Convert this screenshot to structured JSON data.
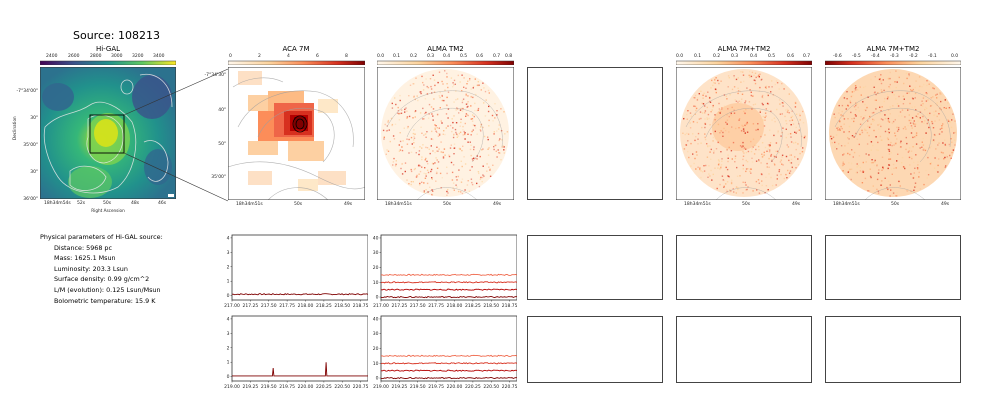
{
  "figure": {
    "title": "Source: 108213",
    "panel_titles": {
      "higal": "Hi-GAL",
      "aca": "ACA 7M",
      "alma_tm2": "ALMA TM2",
      "alma_7m_tm2_a": "ALMA 7M+TM2",
      "alma_7m_tm2_b": "ALMA 7M+TM2"
    },
    "colorbars": {
      "higal": [
        "2400",
        "2600",
        "2800",
        "3000",
        "3200",
        "3400"
      ],
      "aca": [
        "0",
        "2",
        "4",
        "6",
        "8"
      ],
      "alma_tm2": [
        "0.0",
        "0.1",
        "0.2",
        "0.3",
        "0.4",
        "0.5",
        "0.6",
        "0.7",
        "0.8"
      ],
      "alma_7m_tm2_a": [
        "0.0",
        "0.1",
        "0.2",
        "0.3",
        "0.4",
        "0.5",
        "0.6",
        "0.7"
      ],
      "alma_7m_tm2_b": [
        "-0.6",
        "-0.5",
        "-0.4",
        "-0.3",
        "-0.2",
        "-0.1",
        "0.0"
      ]
    },
    "higal_axes": {
      "xlabel": "Right Ascension",
      "ylabel": "Declination",
      "xticks": [
        "18h34m54s",
        "52s",
        "50s",
        "48s",
        "46s"
      ],
      "yticks": [
        "-7°34'00\"",
        "30\"",
        "35'00\"",
        "30\"",
        "36'00\""
      ]
    },
    "aca_axes": {
      "xticks": [
        "18h34m51s",
        "50s",
        "49s"
      ],
      "yticks": [
        "-7°34'30\"",
        "40\"",
        "50\"",
        "35'00\""
      ]
    },
    "alma_axes": {
      "xticks": [
        "18h34m51s",
        "50s",
        "49s"
      ]
    },
    "physical_parameters": {
      "header": "Physical parameters of Hi-GAL source:",
      "distance": "Distance: 5968 pc",
      "mass": "Mass: 1625.1 Msun",
      "luminosity": "Luminosity: 203.3 Lsun",
      "surface_density": "Surface density: 0.99 g/cm^2",
      "lm": "L/M (evolution): 0.125 Lsun/Msun",
      "tbol": "Bolometric temperature: 15.9 K"
    }
  },
  "chart_data": [
    {
      "type": "line",
      "panel": "spectrum-aca-row1",
      "x_ticks": [
        "217.00",
        "217.25",
        "217.50",
        "217.75",
        "218.00",
        "218.25",
        "218.50",
        "218.75"
      ],
      "y_ticks": [
        "0",
        "1",
        "2",
        "3",
        "4"
      ],
      "xlim": [
        217.0,
        218.85
      ],
      "ylim": [
        -0.3,
        4.2
      ],
      "series": [
        {
          "color": "#7f0000",
          "x": [
            217.0,
            218.85
          ],
          "y": [
            0.1,
            0.1
          ]
        }
      ]
    },
    {
      "type": "line",
      "panel": "spectrum-tm2-row1",
      "x_ticks": [
        "217.00",
        "217.25",
        "217.50",
        "217.75",
        "218.00",
        "218.25",
        "218.50",
        "218.75"
      ],
      "y_ticks": [
        "0",
        "10",
        "20",
        "30",
        "40"
      ],
      "xlim": [
        217.0,
        218.85
      ],
      "ylim": [
        -2,
        42
      ],
      "series": [
        {
          "color": "#ef6548",
          "x": [
            217.0,
            218.85
          ],
          "y": [
            15,
            15
          ]
        },
        {
          "color": "#d7301f",
          "x": [
            217.0,
            218.85
          ],
          "y": [
            10,
            10
          ]
        },
        {
          "color": "#b30000",
          "x": [
            217.0,
            218.85
          ],
          "y": [
            5,
            5
          ]
        },
        {
          "color": "#7f0000",
          "x": [
            217.0,
            218.85
          ],
          "y": [
            0,
            0
          ]
        }
      ]
    },
    {
      "type": "line",
      "panel": "spectrum-aca-row2",
      "x_ticks": [
        "219.00",
        "219.25",
        "219.50",
        "219.75",
        "220.00",
        "220.25",
        "220.50",
        "220.75"
      ],
      "y_ticks": [
        "0",
        "1",
        "2",
        "3",
        "4"
      ],
      "xlim": [
        219.0,
        220.85
      ],
      "ylim": [
        -0.3,
        4.2
      ],
      "series": [
        {
          "color": "#7f0000",
          "x": [
            219.0,
            219.55,
            219.56,
            219.57,
            220.27,
            220.28,
            220.29,
            220.85
          ],
          "y": [
            0.05,
            0.05,
            0.6,
            0.05,
            0.05,
            1.0,
            0.05,
            0.05
          ]
        }
      ]
    },
    {
      "type": "line",
      "panel": "spectrum-tm2-row2",
      "x_ticks": [
        "219.00",
        "219.25",
        "219.50",
        "219.75",
        "220.00",
        "220.25",
        "220.50",
        "220.75"
      ],
      "y_ticks": [
        "0",
        "10",
        "20",
        "30",
        "40"
      ],
      "xlim": [
        219.0,
        220.85
      ],
      "ylim": [
        -2,
        42
      ],
      "series": [
        {
          "color": "#ef6548",
          "x": [
            219.0,
            220.85
          ],
          "y": [
            15,
            15
          ]
        },
        {
          "color": "#d7301f",
          "x": [
            219.0,
            220.85
          ],
          "y": [
            10,
            10
          ]
        },
        {
          "color": "#b30000",
          "x": [
            219.0,
            220.85
          ],
          "y": [
            5,
            5
          ]
        },
        {
          "color": "#7f0000",
          "x": [
            219.0,
            220.85
          ],
          "y": [
            0,
            0
          ]
        }
      ]
    }
  ]
}
